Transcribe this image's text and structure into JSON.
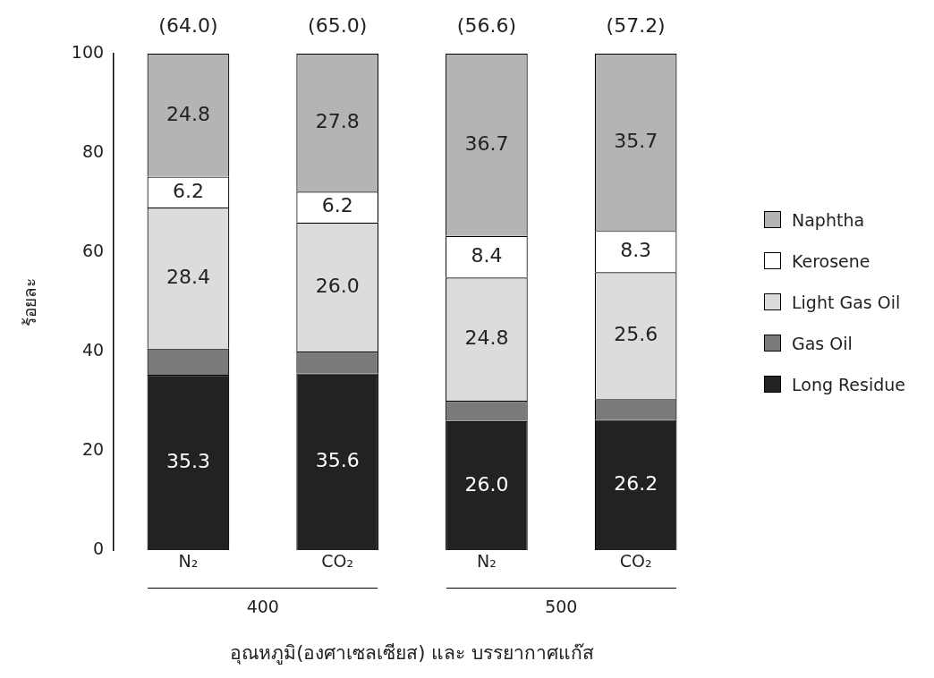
{
  "chart_data": {
    "type": "bar",
    "stacked": true,
    "xlabel": "อุณหภูมิ(องศาเซลเซียส) และ บรรยากาศแก๊ส",
    "ylabel": "ร้อยละ",
    "categories": [
      "N₂",
      "CO₂",
      "N₂",
      "CO₂"
    ],
    "series": [
      {
        "name": "Long Residue",
        "color": "#222222",
        "values": [
          35.3,
          35.6,
          26.0,
          26.2
        ],
        "value_labels": [
          "35.3",
          "35.6",
          "26.0",
          "26.2"
        ]
      },
      {
        "name": "Gas Oil",
        "color": "#7a7a7a",
        "values": [
          5.3,
          4.4,
          4.1,
          4.2
        ],
        "value_labels": [
          null,
          null,
          null,
          null
        ]
      },
      {
        "name": "Light Gas Oil",
        "color": "#dcdcdc",
        "values": [
          28.4,
          26.0,
          24.8,
          25.6
        ],
        "value_labels": [
          "28.4",
          "26.0",
          "24.8",
          "25.6"
        ]
      },
      {
        "name": "Kerosene",
        "color": "#ffffff",
        "values": [
          6.2,
          6.2,
          8.4,
          8.3
        ],
        "value_labels": [
          "6.2",
          "6.2",
          "8.4",
          "8.3"
        ]
      },
      {
        "name": "Naphtha",
        "color": "#b4b4b4",
        "values": [
          24.8,
          27.8,
          36.7,
          35.7
        ],
        "value_labels": [
          "24.8",
          "27.8",
          "36.7",
          "35.7"
        ]
      }
    ],
    "annotations": [
      "(64.0)",
      "(65.0)",
      "(56.6)",
      "(57.2)",
      "400",
      "500"
    ],
    "ylim": [
      0,
      100
    ],
    "yticks": [
      0,
      20,
      40,
      60,
      80,
      100
    ],
    "grid": false,
    "legend": "right"
  }
}
